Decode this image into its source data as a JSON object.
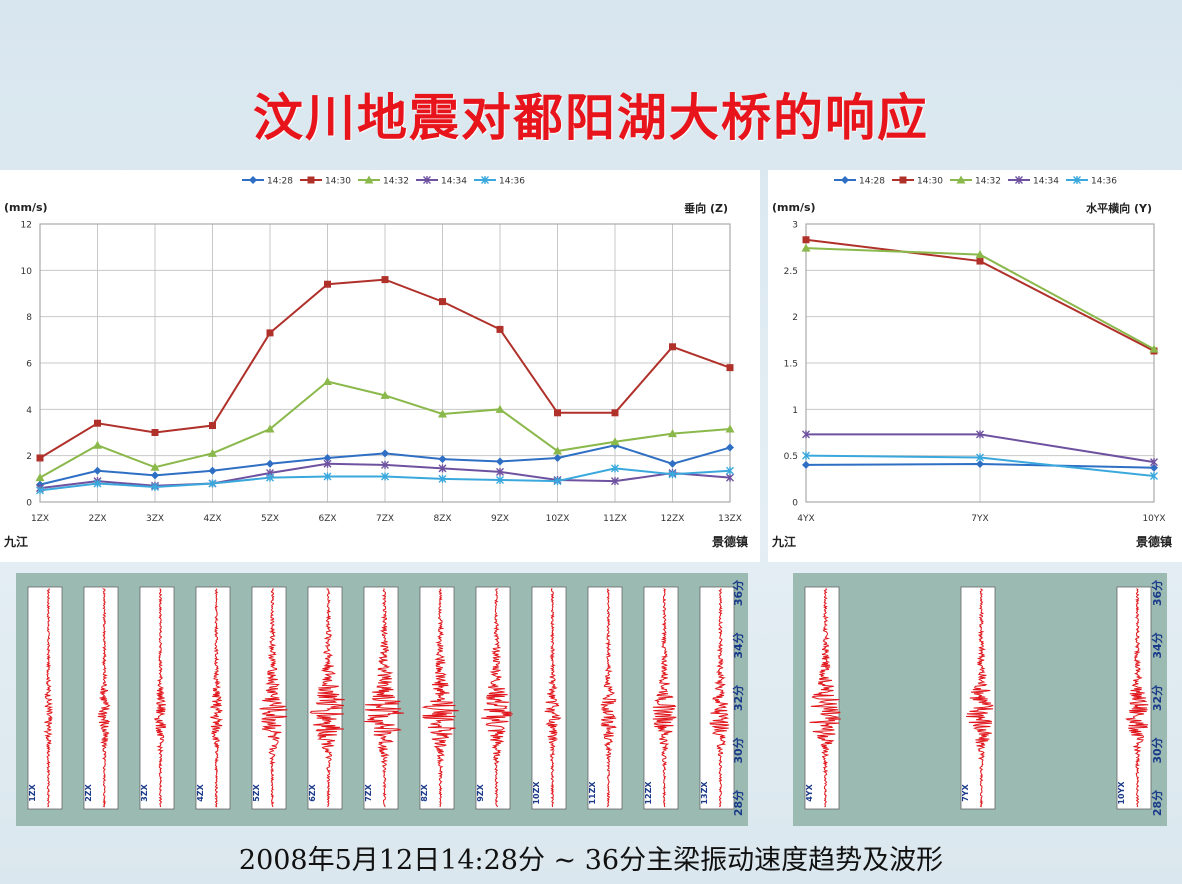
{
  "title": "汶川地震对鄱阳湖大桥的响应",
  "footer": "2008年5月12日14:28分 ~ 36分主梁振动速度趋势及波形",
  "colors": {
    "s1428": "#2e6fc4",
    "s1430": "#b0302a",
    "s1432": "#8ab84a",
    "s1434": "#6e52a0",
    "s1436": "#3aa8dc"
  },
  "chart_data": [
    {
      "type": "line",
      "legend_position": "top",
      "ylabel": "(mm/s)",
      "corner_label": "垂向 (Z)",
      "categories": [
        "1ZX",
        "2ZX",
        "3ZX",
        "4ZX",
        "5ZX",
        "6ZX",
        "7ZX",
        "8ZX",
        "9ZX",
        "10ZX",
        "11ZX",
        "12ZX",
        "13ZX"
      ],
      "ylim": [
        0,
        12
      ],
      "yticks": [
        0,
        2,
        4,
        6,
        8,
        10,
        12
      ],
      "grid": true,
      "left_end_label": "九江",
      "right_end_label": "景德镇",
      "series": [
        {
          "name": "14:28",
          "color": "#2e6fc4",
          "marker": "diamond",
          "values": [
            0.75,
            1.35,
            1.15,
            1.35,
            1.65,
            1.9,
            2.1,
            1.85,
            1.75,
            1.9,
            2.45,
            1.65,
            2.35
          ]
        },
        {
          "name": "14:30",
          "color": "#b0302a",
          "marker": "square",
          "values": [
            1.9,
            3.4,
            3.0,
            3.3,
            7.3,
            9.4,
            9.6,
            8.65,
            7.45,
            3.85,
            3.85,
            6.7,
            5.8
          ]
        },
        {
          "name": "14:32",
          "color": "#8ab84a",
          "marker": "triangle",
          "values": [
            1.05,
            2.45,
            1.5,
            2.1,
            3.15,
            5.2,
            4.6,
            3.8,
            4.0,
            2.2,
            2.6,
            2.95,
            3.15
          ]
        },
        {
          "name": "14:34",
          "color": "#6e52a0",
          "marker": "x",
          "values": [
            0.6,
            0.9,
            0.7,
            0.8,
            1.25,
            1.65,
            1.6,
            1.45,
            1.3,
            0.95,
            0.9,
            1.25,
            1.05
          ]
        },
        {
          "name": "14:36",
          "color": "#3aa8dc",
          "marker": "x",
          "values": [
            0.5,
            0.8,
            0.65,
            0.8,
            1.05,
            1.1,
            1.1,
            1.0,
            0.95,
            0.9,
            1.45,
            1.2,
            1.35
          ]
        }
      ]
    },
    {
      "type": "line",
      "legend_position": "top",
      "ylabel": "(mm/s)",
      "corner_label": "水平横向 (Y)",
      "categories": [
        "4YX",
        "7YX",
        "10YX"
      ],
      "ylim": [
        0,
        3
      ],
      "yticks": [
        0,
        0.5,
        1,
        1.5,
        2,
        2.5,
        3
      ],
      "grid": true,
      "left_end_label": "九江",
      "right_end_label": "景德镇",
      "series": [
        {
          "name": "14:28",
          "color": "#2e6fc4",
          "marker": "diamond",
          "values": [
            0.4,
            0.41,
            0.37
          ]
        },
        {
          "name": "14:30",
          "color": "#b0302a",
          "marker": "square",
          "values": [
            2.83,
            2.6,
            1.63
          ]
        },
        {
          "name": "14:32",
          "color": "#8ab84a",
          "marker": "triangle",
          "values": [
            2.74,
            2.67,
            1.65
          ]
        },
        {
          "name": "14:34",
          "color": "#6e52a0",
          "marker": "x",
          "values": [
            0.73,
            0.73,
            0.43
          ]
        },
        {
          "name": "14:36",
          "color": "#3aa8dc",
          "marker": "x",
          "values": [
            0.5,
            0.48,
            0.28
          ]
        }
      ]
    }
  ],
  "waveforms_z": {
    "labels": [
      "1ZX",
      "2ZX",
      "3ZX",
      "4ZX",
      "5ZX",
      "6ZX",
      "7ZX",
      "8ZX",
      "9ZX",
      "10ZX",
      "11ZX",
      "12ZX",
      "13ZX"
    ],
    "amplitudes": [
      0.2,
      0.35,
      0.3,
      0.35,
      0.75,
      0.95,
      1.0,
      0.9,
      0.8,
      0.4,
      0.45,
      0.6,
      0.55
    ],
    "time_ticks": [
      "36分",
      "34分",
      "32分",
      "30分",
      "28分"
    ]
  },
  "waveforms_y": {
    "labels": [
      "4YX",
      "7YX",
      "10YX"
    ],
    "amplitudes": [
      0.85,
      0.8,
      0.6
    ],
    "time_ticks": [
      "36分",
      "34分",
      "32分",
      "30分",
      "28分"
    ]
  }
}
